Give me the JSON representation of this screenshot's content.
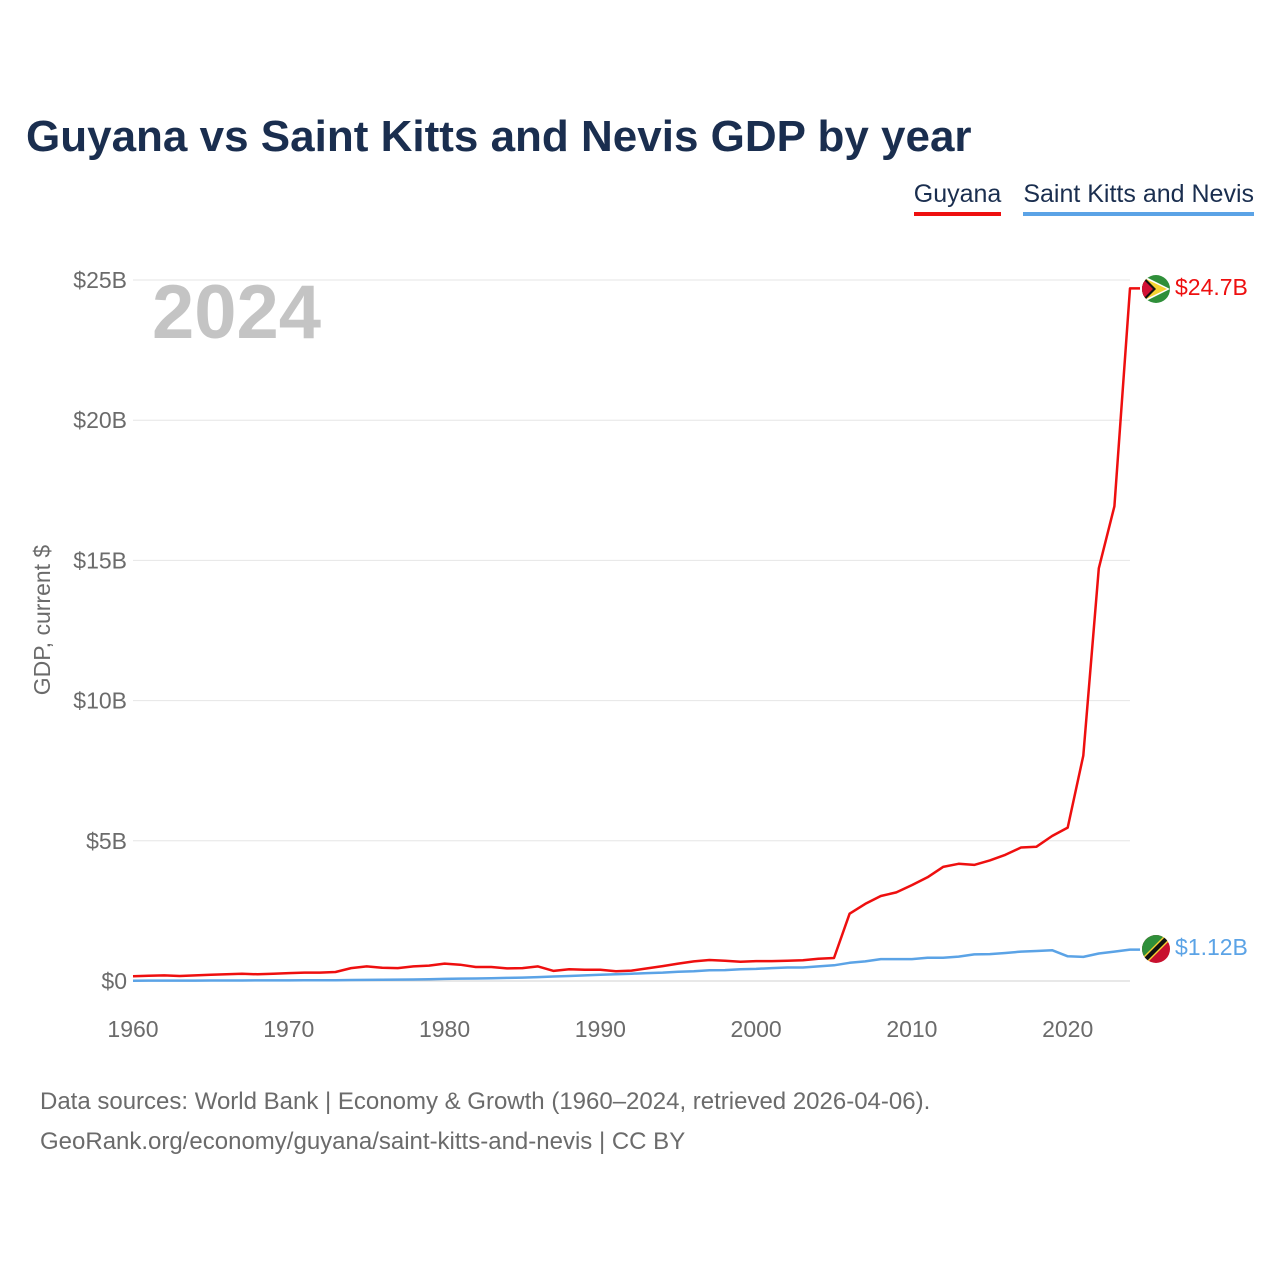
{
  "title": "Guyana vs Saint Kitts and Nevis GDP by year",
  "legend": [
    {
      "label": "Guyana",
      "color": "#ee0f0f"
    },
    {
      "label": "Saint Kitts and Nevis",
      "color": "#5ba3e6"
    }
  ],
  "footer": {
    "line1": "Data sources: World Bank | Economy & Growth (1960–2024, retrieved 2026-04-06).",
    "line2": "GeoRank.org/economy/guyana/saint-kitts-and-nevis | CC BY"
  },
  "chart_data": {
    "type": "line",
    "title": "Guyana vs Saint Kitts and Nevis GDP by year",
    "year_label": "2024",
    "xlabel": "",
    "ylabel": "GDP, current $",
    "xlim": [
      1960,
      2024
    ],
    "ylim": [
      0,
      25
    ],
    "x_ticks": [
      "1960",
      "1970",
      "1980",
      "1990",
      "2000",
      "2010",
      "2020"
    ],
    "y_ticks": [
      "$0",
      "$5B",
      "$10B",
      "$15B",
      "$20B",
      "$25B"
    ],
    "grid": true,
    "legend_position": "top-right",
    "series": [
      {
        "name": "Guyana",
        "color": "#ee0f0f",
        "end_label": "$24.7B",
        "x": [
          1960,
          1961,
          1962,
          1963,
          1964,
          1965,
          1966,
          1967,
          1968,
          1969,
          1970,
          1971,
          1972,
          1973,
          1974,
          1975,
          1976,
          1977,
          1978,
          1979,
          1980,
          1981,
          1982,
          1983,
          1984,
          1985,
          1986,
          1987,
          1988,
          1989,
          1990,
          1991,
          1992,
          1993,
          1994,
          1995,
          1996,
          1997,
          1998,
          1999,
          2000,
          2001,
          2002,
          2003,
          2004,
          2005,
          2006,
          2007,
          2008,
          2009,
          2010,
          2011,
          2012,
          2013,
          2014,
          2015,
          2016,
          2017,
          2018,
          2019,
          2020,
          2021,
          2022,
          2023,
          2024
        ],
        "values": [
          0.17,
          0.19,
          0.2,
          0.18,
          0.2,
          0.22,
          0.24,
          0.26,
          0.24,
          0.26,
          0.28,
          0.3,
          0.3,
          0.32,
          0.46,
          0.52,
          0.47,
          0.46,
          0.52,
          0.55,
          0.62,
          0.58,
          0.5,
          0.5,
          0.45,
          0.46,
          0.52,
          0.36,
          0.42,
          0.4,
          0.4,
          0.35,
          0.37,
          0.45,
          0.53,
          0.62,
          0.7,
          0.75,
          0.72,
          0.69,
          0.71,
          0.71,
          0.72,
          0.74,
          0.79,
          0.82,
          2.4,
          2.75,
          3.03,
          3.16,
          3.42,
          3.7,
          4.07,
          4.18,
          4.14,
          4.3,
          4.5,
          4.76,
          4.79,
          5.17,
          5.47,
          8.04,
          14.72,
          16.93,
          24.7
        ]
      },
      {
        "name": "Saint Kitts and Nevis",
        "color": "#5ba3e6",
        "end_label": "$1.12B",
        "x": [
          1960,
          1961,
          1962,
          1963,
          1964,
          1965,
          1966,
          1967,
          1968,
          1969,
          1970,
          1971,
          1972,
          1973,
          1974,
          1975,
          1976,
          1977,
          1978,
          1979,
          1980,
          1981,
          1982,
          1983,
          1984,
          1985,
          1986,
          1987,
          1988,
          1989,
          1990,
          1991,
          1992,
          1993,
          1994,
          1995,
          1996,
          1997,
          1998,
          1999,
          2000,
          2001,
          2002,
          2003,
          2004,
          2005,
          2006,
          2007,
          2008,
          2009,
          2010,
          2011,
          2012,
          2013,
          2014,
          2015,
          2016,
          2017,
          2018,
          2019,
          2020,
          2021,
          2022,
          2023,
          2024
        ],
        "values": [
          0.012,
          0.013,
          0.014,
          0.015,
          0.016,
          0.017,
          0.018,
          0.019,
          0.02,
          0.021,
          0.022,
          0.024,
          0.026,
          0.03,
          0.035,
          0.04,
          0.045,
          0.05,
          0.055,
          0.062,
          0.075,
          0.085,
          0.09,
          0.095,
          0.11,
          0.12,
          0.14,
          0.16,
          0.18,
          0.2,
          0.22,
          0.24,
          0.26,
          0.28,
          0.3,
          0.33,
          0.35,
          0.38,
          0.39,
          0.42,
          0.43,
          0.46,
          0.48,
          0.48,
          0.52,
          0.56,
          0.65,
          0.7,
          0.78,
          0.78,
          0.78,
          0.83,
          0.83,
          0.87,
          0.95,
          0.96,
          1.0,
          1.05,
          1.07,
          1.1,
          0.88,
          0.86,
          0.98,
          1.05,
          1.12
        ]
      }
    ]
  }
}
